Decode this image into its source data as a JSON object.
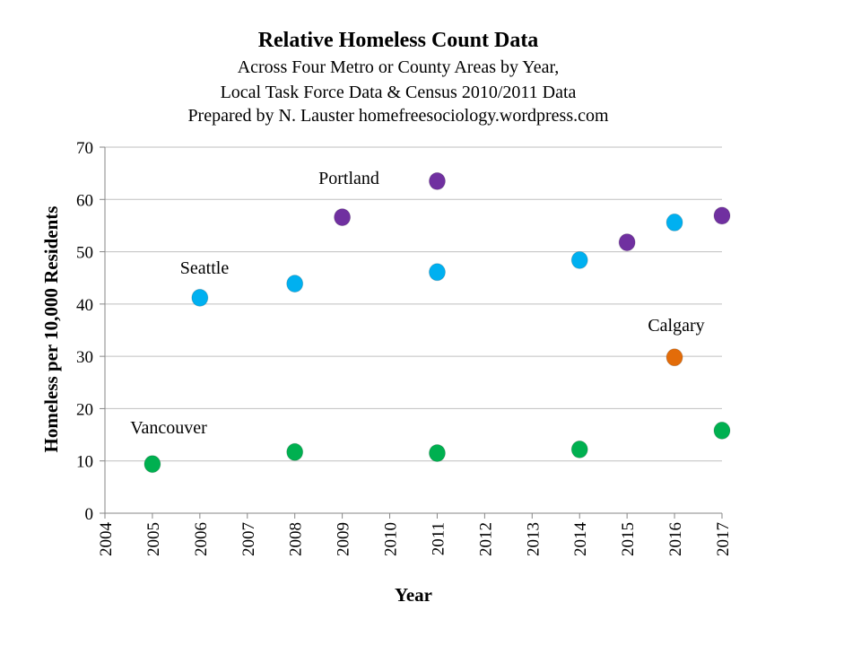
{
  "chart_data": {
    "type": "scatter",
    "title": "Relative Homeless Count Data",
    "subtitle_lines": [
      "Across Four Metro or County Areas by Year,",
      "Local Task Force Data & Census 2010/2011  Data",
      "Prepared by N. Lauster  homefreesociology.wordpress.com"
    ],
    "xlabel": "Year",
    "ylabel": "Homeless per 10,000 Residents",
    "xlim": [
      2004,
      2017
    ],
    "ylim": [
      0,
      70
    ],
    "x_ticks": [
      "2004",
      "2005",
      "2006",
      "2007",
      "2008",
      "2009",
      "2010",
      "2011",
      "2012",
      "2013",
      "2014",
      "2015",
      "2016",
      "2017"
    ],
    "y_ticks": [
      "0",
      "10",
      "20",
      "30",
      "40",
      "50",
      "60",
      "70"
    ],
    "grid": "horizontal",
    "legend": "none (direct labels)",
    "series": [
      {
        "name": "Vancouver",
        "color": "#00B050",
        "x": [
          2005,
          2008,
          2011,
          2014,
          2017
        ],
        "y": [
          9.4,
          11.7,
          11.5,
          12.2,
          15.8
        ]
      },
      {
        "name": "Seattle",
        "color": "#00B0F0",
        "x": [
          2006,
          2008,
          2011,
          2014,
          2016
        ],
        "y": [
          41.2,
          43.9,
          46.1,
          48.4,
          55.6
        ]
      },
      {
        "name": "Portland",
        "color": "#7030A0",
        "x": [
          2009,
          2011,
          2015,
          2017
        ],
        "y": [
          56.6,
          63.5,
          51.8,
          56.9
        ]
      },
      {
        "name": "Calgary",
        "color": "#E36C09",
        "x": [
          2016
        ],
        "y": [
          29.8
        ]
      }
    ]
  }
}
